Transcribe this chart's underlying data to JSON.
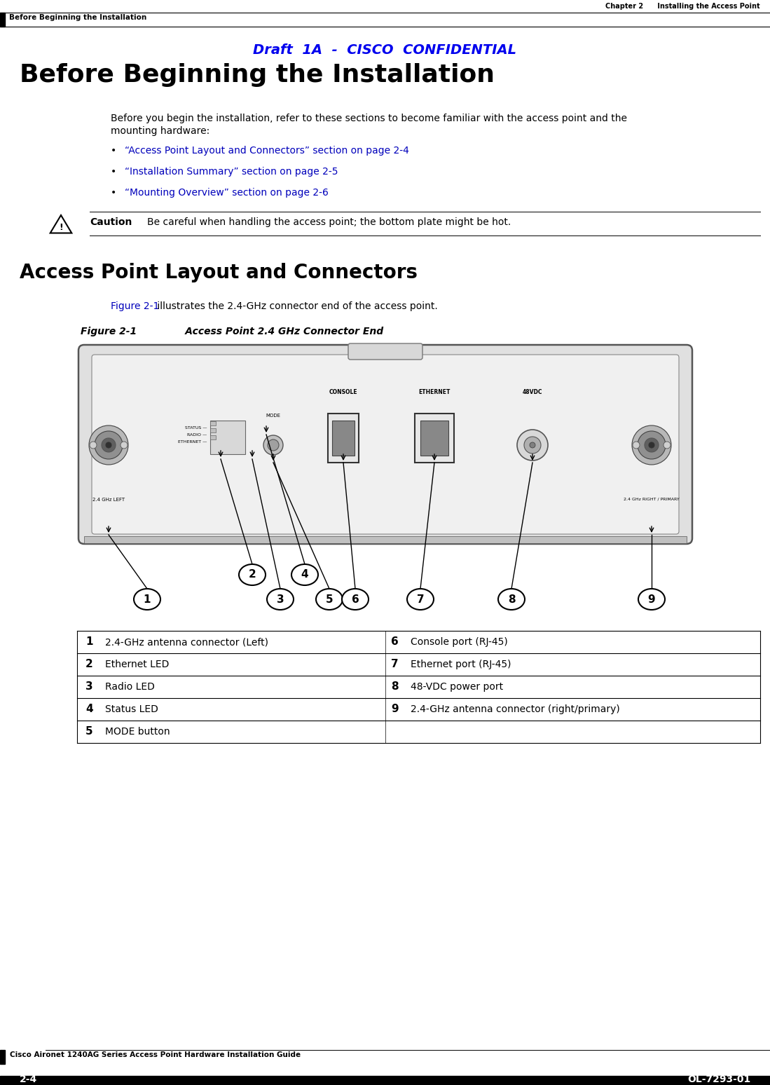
{
  "page_bg": "#ffffff",
  "header_right": "Chapter 2      Installing the Access Point",
  "header_left": "Before Beginning the Installation",
  "draft_confidential": "Draft  1A  -  CISCO  CONFIDENTIAL",
  "main_title": "Before Beginning the Installation",
  "body_line1": "Before you begin the installation, refer to these sections to become familiar with the access point and the",
  "body_line2": "mounting hardware:",
  "bullet_links": [
    "“Access Point Layout and Connectors” section on page 2-4",
    "“Installation Summary” section on page 2-5",
    "“Mounting Overview” section on page 2-6"
  ],
  "caution_text": "Be careful when handling the access point; the bottom plate might be hot.",
  "section2_title": "Access Point Layout and Connectors",
  "figure_intro_link": "Figure 2-1",
  "figure_intro_rest": " illustrates the 2.4-GHz connector end of the access point.",
  "figure_label": "Figure 2-1",
  "figure_title": "      Access Point 2.4 GHz Connector End",
  "table_rows": [
    [
      "1",
      "2.4-GHz antenna connector (Left)",
      "6",
      "Console port (RJ-45)"
    ],
    [
      "2",
      "Ethernet LED",
      "7",
      "Ethernet port (RJ-45)"
    ],
    [
      "3",
      "Radio LED",
      "8",
      "48-VDC power port"
    ],
    [
      "4",
      "Status LED",
      "9",
      "2.4-GHz antenna connector (right/primary)"
    ],
    [
      "5",
      "MODE button",
      "",
      ""
    ]
  ],
  "footer_left": "Cisco Aironet 1240AG Series Access Point Hardware Installation Guide",
  "footer_page": "2-4",
  "footer_right": "OL-7293-01",
  "link_color": "#0000BB",
  "text_color": "#000000",
  "draft_color": "#0000EE"
}
